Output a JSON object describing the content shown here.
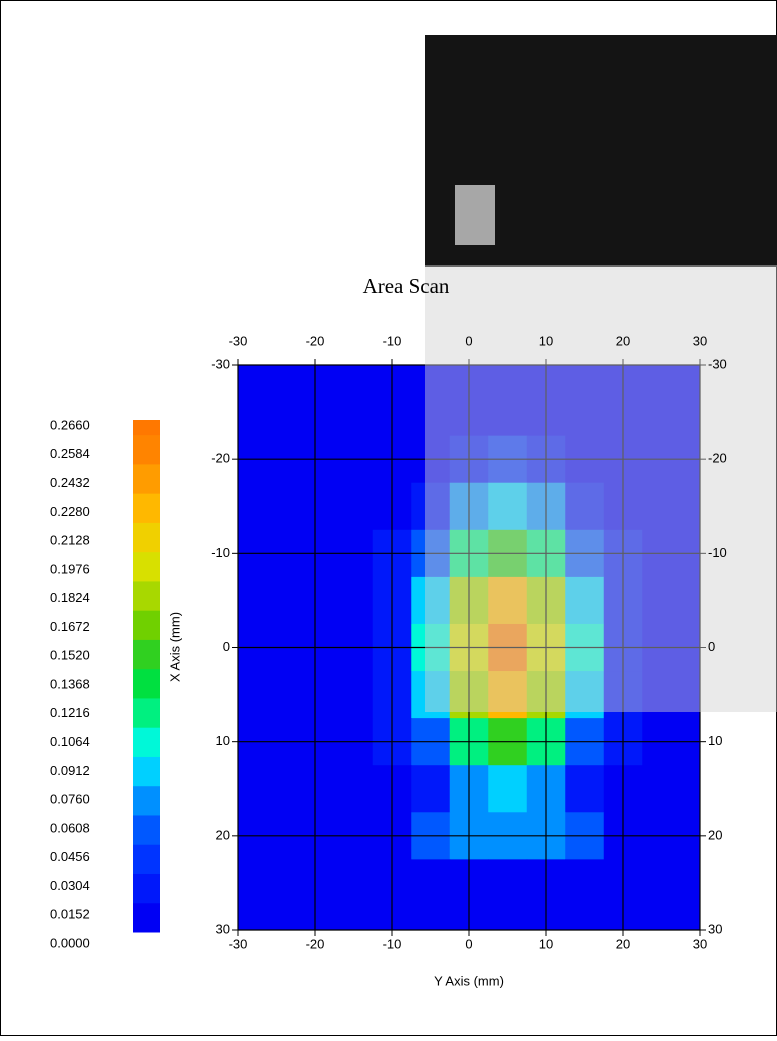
{
  "chart_data": {
    "type": "contour",
    "title": "Area Scan",
    "x_label": "Y Axis (mm)",
    "y_label": "X Axis (mm)",
    "x": [
      -30,
      -25,
      -20,
      -15,
      -10,
      -5,
      0,
      5,
      10,
      15,
      20,
      25,
      30
    ],
    "y": [
      -30,
      -25,
      -20,
      -15,
      -10,
      -5,
      0,
      5,
      10,
      15,
      20,
      25,
      30
    ],
    "z": [
      [
        0,
        0,
        0,
        0,
        0,
        0.001,
        0.002,
        0.003,
        0.002,
        0.001,
        0,
        0,
        0
      ],
      [
        0,
        0,
        0,
        0,
        0.001,
        0.004,
        0.008,
        0.01,
        0.008,
        0.004,
        0.001,
        0,
        0
      ],
      [
        0,
        0,
        0,
        0.001,
        0.003,
        0.012,
        0.025,
        0.033,
        0.025,
        0.012,
        0.003,
        0.001,
        0
      ],
      [
        0,
        0,
        0,
        0.001,
        0.008,
        0.029,
        0.062,
        0.079,
        0.062,
        0.029,
        0.008,
        0.001,
        0
      ],
      [
        0,
        0,
        0,
        0.003,
        0.016,
        0.055,
        0.117,
        0.15,
        0.117,
        0.055,
        0.016,
        0.003,
        0
      ],
      [
        0,
        0,
        0,
        0.004,
        0.023,
        0.081,
        0.172,
        0.22,
        0.172,
        0.081,
        0.023,
        0.004,
        0
      ],
      [
        0,
        0,
        0.001,
        0.005,
        0.026,
        0.092,
        0.195,
        0.25,
        0.195,
        0.092,
        0.026,
        0.005,
        0.001
      ],
      [
        0,
        0,
        0,
        0.004,
        0.023,
        0.081,
        0.172,
        0.22,
        0.172,
        0.081,
        0.023,
        0.004,
        0
      ],
      [
        0,
        0,
        0,
        0.003,
        0.016,
        0.055,
        0.117,
        0.15,
        0.117,
        0.055,
        0.016,
        0.003,
        0
      ],
      [
        0,
        0,
        0,
        0.001,
        0.008,
        0.029,
        0.062,
        0.079,
        0.062,
        0.029,
        0.008,
        0.001,
        0
      ],
      [
        0,
        0,
        0,
        0.001,
        0.003,
        0.06,
        0.07,
        0.075,
        0.07,
        0.06,
        0.003,
        0.001,
        0
      ],
      [
        0,
        0,
        0,
        0,
        0,
        0,
        0,
        0,
        0,
        0,
        0,
        0,
        0
      ],
      [
        0,
        0,
        0,
        0,
        0,
        0,
        0,
        0,
        0,
        0,
        0,
        0,
        0
      ]
    ],
    "xlim": [
      -30,
      30
    ],
    "ylim": [
      -30,
      30
    ],
    "y_inverted": true,
    "xticks": [
      -30,
      -20,
      -10,
      0,
      10,
      20,
      30
    ],
    "yticks": [
      -30,
      -20,
      -10,
      0,
      10,
      20,
      30
    ],
    "grid": true,
    "colorbar_ticks": [
      {
        "value": 0,
        "label": "0.0000"
      },
      {
        "value": 0.0152,
        "label": "0.0152"
      },
      {
        "value": 0.0304,
        "label": "0.0304"
      },
      {
        "value": 0.0456,
        "label": "0.0456"
      },
      {
        "value": 0.0608,
        "label": "0.0608"
      },
      {
        "value": 0.076,
        "label": "0.0760"
      },
      {
        "value": 0.0912,
        "label": "0.0912"
      },
      {
        "value": 0.1064,
        "label": "0.1064"
      },
      {
        "value": 0.1216,
        "label": "0.1216"
      },
      {
        "value": 0.1368,
        "label": "0.1368"
      },
      {
        "value": 0.152,
        "label": "0.1520"
      },
      {
        "value": 0.1672,
        "label": "0.1672"
      },
      {
        "value": 0.1824,
        "label": "0.1824"
      },
      {
        "value": 0.1976,
        "label": "0.1976"
      },
      {
        "value": 0.2128,
        "label": "0.2128"
      },
      {
        "value": 0.228,
        "label": "0.2280"
      },
      {
        "value": 0.2432,
        "label": "0.2432"
      },
      {
        "value": 0.2584,
        "label": "0.2584"
      },
      {
        "value": 0.266,
        "label": "0.2660"
      }
    ],
    "colorscale": [
      "#0000f4",
      "#0018fa",
      "#0034ff",
      "#0058ff",
      "#0090ff",
      "#00d0ff",
      "#00f8d8",
      "#00f080",
      "#00e040",
      "#30d020",
      "#70d000",
      "#a8d800",
      "#d8e000",
      "#f0d000",
      "#ffb800",
      "#ff9c00",
      "#ff8400",
      "#ff7800"
    ]
  }
}
